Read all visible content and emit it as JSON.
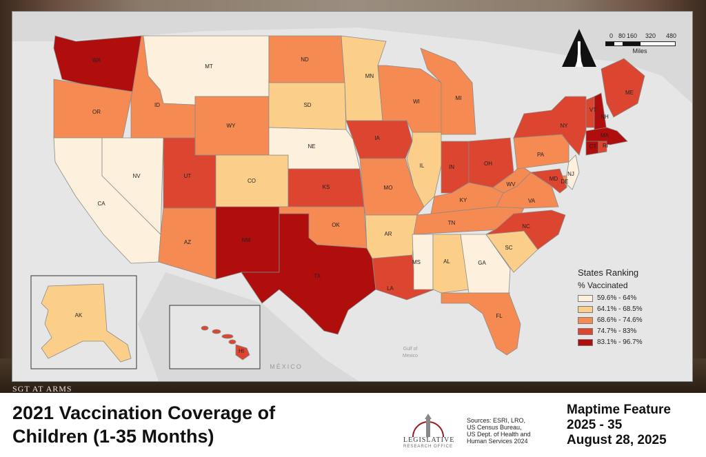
{
  "header_banner": "SGT AT ARMS",
  "title_lines": [
    "2021 Vaccination Coverage of",
    "Children (1-35 Months)"
  ],
  "legend": {
    "title": "States Ranking",
    "subtitle": "% Vaccinated",
    "classes": [
      {
        "label": "59.6% - 64%",
        "color": "#fdf0dc"
      },
      {
        "label": "64.1% - 68.5%",
        "color": "#fbcf8a"
      },
      {
        "label": "68.6% - 74.6%",
        "color": "#f58a52"
      },
      {
        "label": "74.7% - 83%",
        "color": "#dc4530"
      },
      {
        "label": "83.1% - 96.7%",
        "color": "#b00d0d"
      }
    ]
  },
  "scale_bar": {
    "ticks": [
      "0",
      "80",
      "160",
      "320",
      "480"
    ],
    "unit": "Miles"
  },
  "north_arrow": "north-arrow-icon",
  "geo_labels": {
    "gulf_line1": "Gulf of",
    "gulf_line2": "Mexico",
    "mexico": "MÉXICO"
  },
  "states": [
    {
      "abbr": "WA",
      "class": 4
    },
    {
      "abbr": "OR",
      "class": 2
    },
    {
      "abbr": "CA",
      "class": 0
    },
    {
      "abbr": "NV",
      "class": 0
    },
    {
      "abbr": "ID",
      "class": 2
    },
    {
      "abbr": "MT",
      "class": 0
    },
    {
      "abbr": "WY",
      "class": 2
    },
    {
      "abbr": "UT",
      "class": 3
    },
    {
      "abbr": "AZ",
      "class": 2
    },
    {
      "abbr": "CO",
      "class": 1
    },
    {
      "abbr": "NM",
      "class": 4
    },
    {
      "abbr": "ND",
      "class": 2
    },
    {
      "abbr": "SD",
      "class": 1
    },
    {
      "abbr": "NE",
      "class": 0
    },
    {
      "abbr": "KS",
      "class": 3
    },
    {
      "abbr": "OK",
      "class": 2
    },
    {
      "abbr": "TX",
      "class": 4
    },
    {
      "abbr": "MN",
      "class": 1
    },
    {
      "abbr": "IA",
      "class": 3
    },
    {
      "abbr": "MO",
      "class": 2
    },
    {
      "abbr": "AR",
      "class": 1
    },
    {
      "abbr": "LA",
      "class": 3
    },
    {
      "abbr": "WI",
      "class": 2
    },
    {
      "abbr": "IL",
      "class": 1
    },
    {
      "abbr": "MI",
      "class": 2
    },
    {
      "abbr": "IN",
      "class": 3
    },
    {
      "abbr": "OH",
      "class": 3
    },
    {
      "abbr": "KY",
      "class": 2
    },
    {
      "abbr": "TN",
      "class": 2
    },
    {
      "abbr": "MS",
      "class": 0
    },
    {
      "abbr": "AL",
      "class": 1
    },
    {
      "abbr": "GA",
      "class": 0
    },
    {
      "abbr": "FL",
      "class": 2
    },
    {
      "abbr": "SC",
      "class": 1
    },
    {
      "abbr": "NC",
      "class": 3
    },
    {
      "abbr": "VA",
      "class": 2
    },
    {
      "abbr": "WV",
      "class": 2
    },
    {
      "abbr": "PA",
      "class": 2
    },
    {
      "abbr": "NY",
      "class": 3
    },
    {
      "abbr": "VT",
      "class": 3
    },
    {
      "abbr": "NH",
      "class": 4
    },
    {
      "abbr": "ME",
      "class": 3
    },
    {
      "abbr": "MA",
      "class": 4
    },
    {
      "abbr": "CT",
      "class": 4
    },
    {
      "abbr": "RI",
      "class": 3
    },
    {
      "abbr": "NJ",
      "class": 0
    },
    {
      "abbr": "DE",
      "class": 2
    },
    {
      "abbr": "MD",
      "class": 3
    },
    {
      "abbr": "AK",
      "class": 1
    },
    {
      "abbr": "HI",
      "class": 3
    }
  ],
  "footer": {
    "logo_line1": "LEGISLATIVE",
    "logo_line2": "RESEARCH OFFICE",
    "sources_lines": [
      "Sources:  ESRI, LRO,",
      "US Census Bureau,",
      "US Dept. of Health and",
      "Human Services 2024"
    ],
    "feature_lines": [
      "Maptime Feature",
      "2025 - 35",
      "August 28, 2025"
    ]
  }
}
